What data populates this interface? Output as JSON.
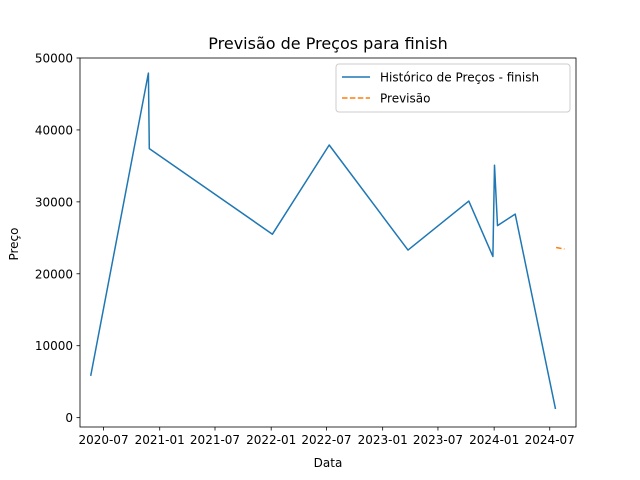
{
  "chart_data": {
    "type": "line",
    "title": "Previsão de Preços para finish",
    "xlabel": "Data",
    "ylabel": "Preço",
    "xlim": [
      "2020-04-15",
      "2024-09-25"
    ],
    "ylim": [
      -1300,
      50000
    ],
    "x_ticks": [
      "2020-07-01",
      "2021-01-01",
      "2021-07-01",
      "2022-01-01",
      "2022-07-01",
      "2023-01-01",
      "2023-07-01",
      "2024-01-01",
      "2024-07-01"
    ],
    "x_tick_labels": [
      "2020-07",
      "2021-01",
      "2021-07",
      "2022-01",
      "2022-07",
      "2023-01",
      "2023-07",
      "2024-01",
      "2024-07"
    ],
    "y_ticks": [
      0,
      10000,
      20000,
      30000,
      40000,
      50000
    ],
    "y_tick_labels": [
      "0",
      "10000",
      "20000",
      "30000",
      "40000",
      "50000"
    ],
    "grid": false,
    "legend_position": "top-right",
    "series": [
      {
        "name": "Histórico de Preços - finish",
        "color": "#1f77b4",
        "style": "solid",
        "points": [
          {
            "x": "2020-05-20",
            "y": 5800
          },
          {
            "x": "2020-11-25",
            "y": 47900
          },
          {
            "x": "2020-11-28",
            "y": 37400
          },
          {
            "x": "2022-01-05",
            "y": 25500
          },
          {
            "x": "2022-07-10",
            "y": 37900
          },
          {
            "x": "2023-03-25",
            "y": 23300
          },
          {
            "x": "2023-10-10",
            "y": 30100
          },
          {
            "x": "2023-12-28",
            "y": 22400
          },
          {
            "x": "2024-01-02",
            "y": 35100
          },
          {
            "x": "2024-01-12",
            "y": 26700
          },
          {
            "x": "2024-03-10",
            "y": 28300
          },
          {
            "x": "2024-07-20",
            "y": 1200
          }
        ]
      },
      {
        "name": "Previsão",
        "color": "#ff7f0e",
        "style": "dashed",
        "points": [
          {
            "x": "2024-07-22",
            "y": 23650
          },
          {
            "x": "2024-08-18",
            "y": 23450
          }
        ]
      }
    ]
  }
}
